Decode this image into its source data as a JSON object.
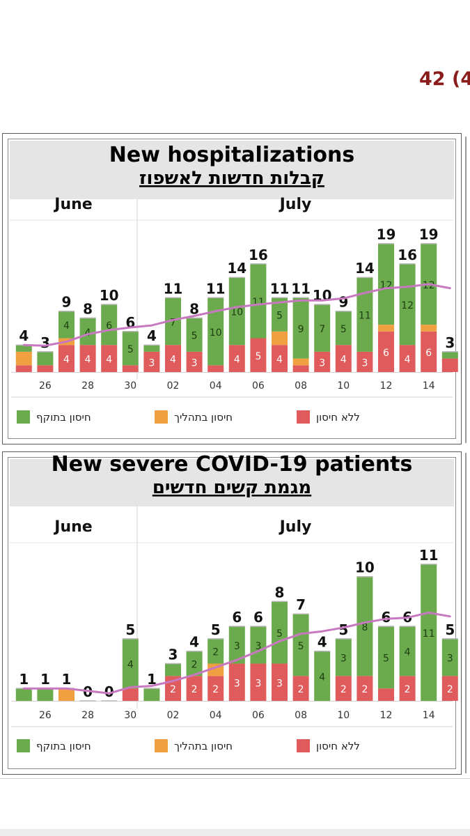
{
  "corner_text": "42 (4",
  "colors": {
    "vaccinated": "#6bab4e",
    "in_progress": "#f0a040",
    "unvaccinated": "#e05b5b",
    "trend": "#c878c0",
    "header_bg": "#e5e5e5"
  },
  "legend": [
    {
      "label": "חיסון בתוקף",
      "color": "#6bab4e"
    },
    {
      "label": "חיסון בתהליך",
      "color": "#f0a040"
    },
    {
      "label": "ללא חיסון",
      "color": "#e05b5b"
    }
  ],
  "chart_data": [
    {
      "type": "bar",
      "stacked": true,
      "title": "New hospitalizations",
      "subtitle": "קבלות חדשות לאשפוז",
      "months": [
        {
          "label": "June",
          "from": 0,
          "to": 5
        },
        {
          "label": "July",
          "from": 6,
          "to": 20
        }
      ],
      "tick_labels": [
        {
          "index": 1,
          "label": "26"
        },
        {
          "index": 3,
          "label": "28"
        },
        {
          "index": 5,
          "label": "30"
        },
        {
          "index": 7,
          "label": "02"
        },
        {
          "index": 9,
          "label": "04"
        },
        {
          "index": 11,
          "label": "06"
        },
        {
          "index": 13,
          "label": "08"
        },
        {
          "index": 15,
          "label": "10"
        },
        {
          "index": 17,
          "label": "12"
        },
        {
          "index": 19,
          "label": "14"
        }
      ],
      "totals": [
        4,
        3,
        9,
        8,
        10,
        6,
        4,
        11,
        8,
        11,
        14,
        16,
        11,
        11,
        10,
        9,
        14,
        19,
        16,
        19,
        3
      ],
      "series": [
        {
          "key": "unvaccinated",
          "values": [
            1,
            1,
            4,
            4,
            4,
            1,
            3,
            4,
            3,
            1,
            4,
            5,
            4,
            1,
            3,
            4,
            3,
            6,
            4,
            6,
            2
          ],
          "labels": [
            null,
            null,
            "4",
            "4",
            "4",
            null,
            "3",
            "4",
            "3",
            null,
            "4",
            "5",
            "4",
            null,
            "3",
            "4",
            "3",
            "6",
            "4",
            "6",
            null
          ]
        },
        {
          "key": "in_progress",
          "values": [
            2,
            0,
            1,
            0,
            0,
            0,
            0,
            0,
            0,
            0,
            0,
            0,
            2,
            1,
            0,
            0,
            0,
            1,
            0,
            1,
            0
          ],
          "labels": [
            null,
            null,
            null,
            null,
            null,
            null,
            null,
            null,
            null,
            null,
            null,
            null,
            null,
            null,
            null,
            null,
            null,
            null,
            null,
            null,
            null
          ]
        },
        {
          "key": "vaccinated",
          "values": [
            1,
            2,
            4,
            4,
            6,
            5,
            1,
            7,
            5,
            10,
            10,
            11,
            5,
            9,
            7,
            5,
            11,
            12,
            12,
            12,
            1
          ],
          "labels": [
            null,
            null,
            "4",
            "4",
            "6",
            "5",
            null,
            "7",
            "5",
            "10",
            "10",
            "11",
            "5",
            "9",
            "7",
            "5",
            "11",
            "12",
            "12",
            "12",
            null
          ]
        }
      ],
      "trend": [
        4,
        3.9,
        4.5,
        5.6,
        6.2,
        6.6,
        6.9,
        7.7,
        8.3,
        9.0,
        9.6,
        10.0,
        10.3,
        10.6,
        10.6,
        10.9,
        11.7,
        12.4,
        12.6,
        13.0,
        12.4
      ],
      "ymax": 20
    },
    {
      "type": "bar",
      "stacked": true,
      "title": "New severe COVID-19 patients",
      "subtitle": "מגמת קשים חדשים",
      "months": [
        {
          "label": "June",
          "from": 0,
          "to": 5
        },
        {
          "label": "July",
          "from": 6,
          "to": 20
        }
      ],
      "tick_labels": [
        {
          "index": 1,
          "label": "26"
        },
        {
          "index": 3,
          "label": "28"
        },
        {
          "index": 5,
          "label": "30"
        },
        {
          "index": 7,
          "label": "02"
        },
        {
          "index": 9,
          "label": "04"
        },
        {
          "index": 11,
          "label": "06"
        },
        {
          "index": 13,
          "label": "08"
        },
        {
          "index": 15,
          "label": "10"
        },
        {
          "index": 17,
          "label": "12"
        },
        {
          "index": 19,
          "label": "14"
        }
      ],
      "totals": [
        1,
        1,
        1,
        0,
        0,
        5,
        1,
        3,
        4,
        5,
        6,
        6,
        8,
        7,
        4,
        5,
        10,
        6,
        6,
        11,
        5
      ],
      "series": [
        {
          "key": "unvaccinated",
          "values": [
            0,
            0,
            0,
            0,
            0,
            1,
            0,
            2,
            2,
            2,
            3,
            3,
            3,
            2,
            0,
            2,
            2,
            1,
            2,
            0,
            2
          ],
          "labels": [
            null,
            null,
            null,
            null,
            null,
            null,
            null,
            "2",
            "2",
            "2",
            "3",
            "3",
            "3",
            "2",
            null,
            "2",
            "2",
            null,
            "2",
            null,
            "2"
          ]
        },
        {
          "key": "in_progress",
          "values": [
            0,
            0,
            1,
            0,
            0,
            0,
            0,
            0,
            0,
            1,
            0,
            0,
            0,
            0,
            0,
            0,
            0,
            0,
            0,
            0,
            0
          ],
          "labels": [
            null,
            null,
            null,
            null,
            null,
            null,
            null,
            null,
            null,
            null,
            null,
            null,
            null,
            null,
            null,
            null,
            null,
            null,
            null,
            null,
            null
          ]
        },
        {
          "key": "vaccinated",
          "values": [
            1,
            1,
            0,
            0,
            0,
            4,
            1,
            1,
            2,
            2,
            3,
            3,
            5,
            5,
            4,
            3,
            8,
            5,
            4,
            11,
            3
          ],
          "labels": [
            null,
            null,
            null,
            null,
            null,
            "4",
            null,
            null,
            "2",
            "2",
            "3",
            "3",
            "5",
            "5",
            "4",
            "3",
            "8",
            "5",
            "4",
            "11",
            "3"
          ]
        }
      ],
      "trend": [
        1,
        1,
        1,
        0.8,
        0.6,
        1.1,
        1.2,
        1.6,
        2.1,
        2.7,
        3.3,
        4.0,
        4.8,
        5.4,
        5.6,
        5.9,
        6.3,
        6.6,
        6.7,
        7.1,
        6.8
      ],
      "ymax": 11.5
    }
  ]
}
